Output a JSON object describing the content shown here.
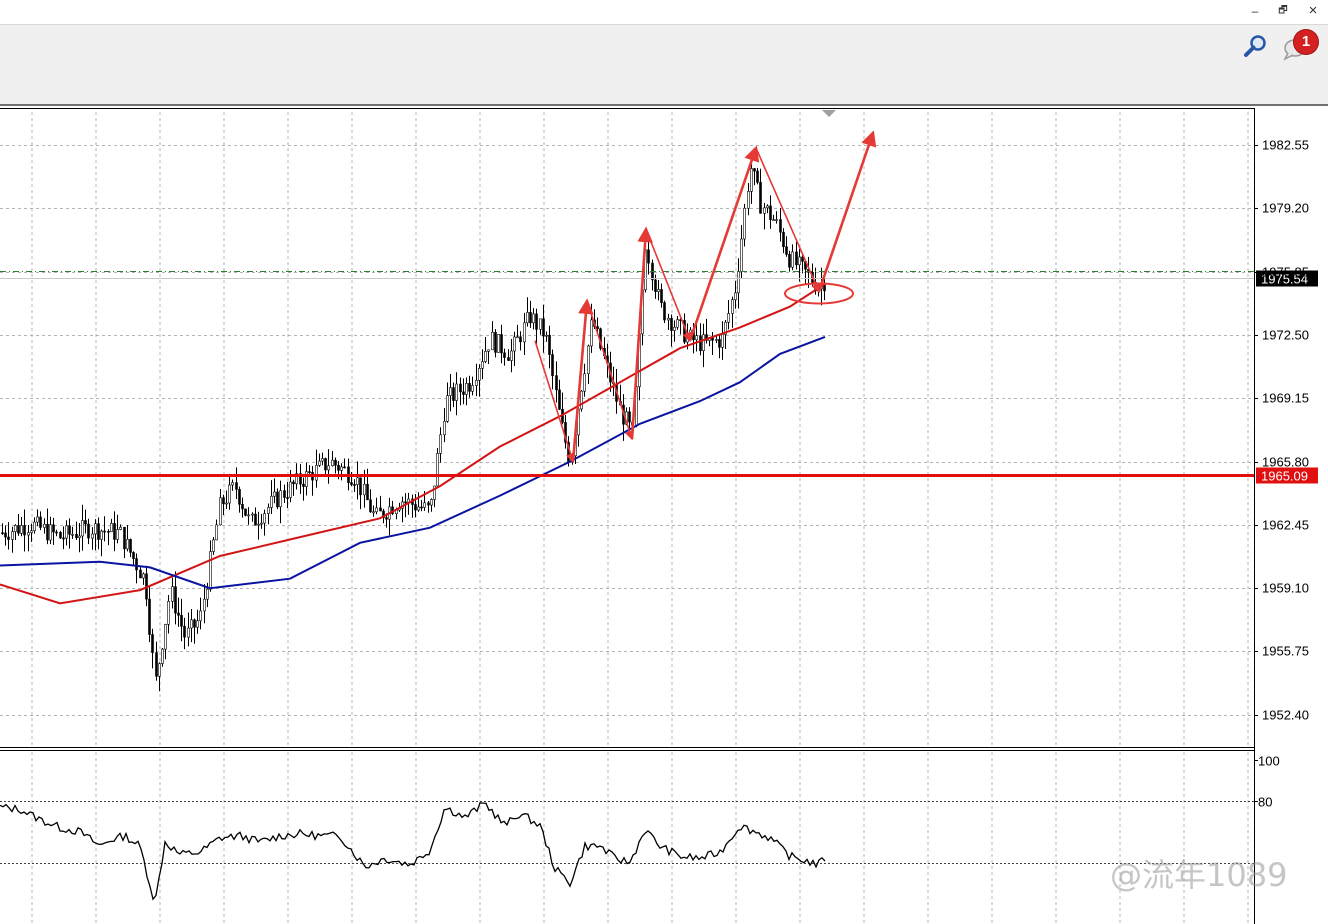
{
  "window": {
    "minimize_icon": "minimize-icon",
    "minimize_glyph": "–",
    "restore_icon": "restore-icon",
    "restore_glyph": "🗗",
    "close_icon": "close-icon",
    "close_glyph": "×"
  },
  "toolbar": {
    "search_icon": "search-icon",
    "chat_icon": "chat-icon",
    "notification_count": "1"
  },
  "watermark": {
    "text": "@流年1089"
  },
  "colors": {
    "candles": "#000000",
    "ma_fast": "#d21414",
    "ma_slow": "#0a14a0",
    "support_line": "#e01010",
    "annotation": "#e53935",
    "grid": "#b4b4b4",
    "bid_line": "#2e7d32"
  },
  "chart_data": [
    {
      "type": "candlestick",
      "title": "",
      "ylim": [
        1950.8,
        1984.3
      ],
      "y_ticks": [
        "1982.55",
        "1979.20",
        "1975.85",
        "1972.50",
        "1969.15",
        "1965.80",
        "1962.45",
        "1959.10",
        "1955.75",
        "1952.40"
      ],
      "grid": true,
      "current_price": "1975.54",
      "support_level": "1965.09",
      "moving_averages": [
        {
          "color": "red",
          "points": [
            [
              0,
              1959.3
            ],
            [
              60,
              1958.3
            ],
            [
              140,
              1959.0
            ],
            [
              220,
              1960.8
            ],
            [
              300,
              1961.8
            ],
            [
              380,
              1962.8
            ],
            [
              440,
              1964.5
            ],
            [
              500,
              1966.6
            ],
            [
              560,
              1968.2
            ],
            [
              620,
              1970.0
            ],
            [
              680,
              1971.8
            ],
            [
              740,
              1972.9
            ],
            [
              790,
              1974.0
            ],
            [
              825,
              1975.2
            ]
          ]
        },
        {
          "color": "blue",
          "points": [
            [
              0,
              1960.3
            ],
            [
              100,
              1960.5
            ],
            [
              150,
              1960.2
            ],
            [
              210,
              1959.1
            ],
            [
              290,
              1959.6
            ],
            [
              360,
              1961.5
            ],
            [
              430,
              1962.3
            ],
            [
              500,
              1964.0
            ],
            [
              570,
              1965.8
            ],
            [
              640,
              1967.8
            ],
            [
              700,
              1969.0
            ],
            [
              740,
              1970.0
            ],
            [
              780,
              1971.5
            ],
            [
              825,
              1972.4
            ]
          ]
        }
      ],
      "price_path": [
        [
          0,
          1962.0
        ],
        [
          30,
          1962.5
        ],
        [
          60,
          1961.8
        ],
        [
          90,
          1962.3
        ],
        [
          120,
          1962.0
        ],
        [
          145,
          1959.5
        ],
        [
          155,
          1954.0
        ],
        [
          170,
          1959.0
        ],
        [
          185,
          1956.5
        ],
        [
          200,
          1957.5
        ],
        [
          220,
          1963.5
        ],
        [
          235,
          1964.5
        ],
        [
          250,
          1962.5
        ],
        [
          280,
          1964.0
        ],
        [
          300,
          1964.8
        ],
        [
          330,
          1965.8
        ],
        [
          355,
          1965.0
        ],
        [
          375,
          1962.8
        ],
        [
          400,
          1963.8
        ],
        [
          430,
          1963.2
        ],
        [
          445,
          1969.0
        ],
        [
          470,
          1970.0
        ],
        [
          490,
          1972.3
        ],
        [
          510,
          1971.5
        ],
        [
          530,
          1973.5
        ],
        [
          545,
          1972.5
        ],
        [
          560,
          1968.0
        ],
        [
          570,
          1965.8
        ],
        [
          580,
          1969.5
        ],
        [
          592,
          1973.3
        ],
        [
          605,
          1971.0
        ],
        [
          620,
          1968.5
        ],
        [
          633,
          1967.2
        ],
        [
          645,
          1977.5
        ],
        [
          660,
          1974.0
        ],
        [
          675,
          1973.0
        ],
        [
          690,
          1972.3
        ],
        [
          705,
          1972.0
        ],
        [
          722,
          1972.3
        ],
        [
          735,
          1975.0
        ],
        [
          750,
          1981.5
        ],
        [
          760,
          1979.5
        ],
        [
          775,
          1978.5
        ],
        [
          790,
          1976.5
        ],
        [
          805,
          1975.8
        ],
        [
          818,
          1975.1
        ],
        [
          825,
          1975.4
        ]
      ],
      "annotation_arrows": [
        {
          "from": [
            535,
            1972.2
          ],
          "to": [
            573,
            1965.8
          ]
        },
        {
          "from": [
            573,
            1965.8
          ],
          "to": [
            587,
            1974.3
          ]
        },
        {
          "from": [
            587,
            1974.3
          ],
          "to": [
            632,
            1967.0
          ]
        },
        {
          "from": [
            632,
            1967.0
          ],
          "to": [
            646,
            1978.1
          ]
        },
        {
          "from": [
            646,
            1978.1
          ],
          "to": [
            690,
            1972.2
          ]
        },
        {
          "from": [
            690,
            1972.2
          ],
          "to": [
            756,
            1982.4
          ]
        },
        {
          "from": [
            756,
            1982.4
          ],
          "to": [
            819,
            1974.8
          ]
        },
        {
          "from": [
            819,
            1974.8
          ],
          "to": [
            873,
            1983.2
          ]
        }
      ],
      "highlight_ellipse_center": [
        819,
        1974.8
      ]
    },
    {
      "type": "line",
      "title": "",
      "ylim": [
        20,
        100
      ],
      "y_ticks": [
        "100",
        "80"
      ],
      "level_lines": [
        80,
        50
      ],
      "values": [
        [
          0,
          77
        ],
        [
          20,
          76
        ],
        [
          40,
          71
        ],
        [
          60,
          67
        ],
        [
          80,
          65
        ],
        [
          100,
          58
        ],
        [
          110,
          61
        ],
        [
          125,
          63
        ],
        [
          140,
          58
        ],
        [
          155,
          30
        ],
        [
          165,
          60
        ],
        [
          180,
          54
        ],
        [
          200,
          55
        ],
        [
          220,
          62
        ],
        [
          240,
          63
        ],
        [
          260,
          60
        ],
        [
          280,
          63
        ],
        [
          300,
          64
        ],
        [
          320,
          63
        ],
        [
          340,
          63
        ],
        [
          365,
          48
        ],
        [
          385,
          52
        ],
        [
          410,
          49
        ],
        [
          430,
          56
        ],
        [
          445,
          77
        ],
        [
          465,
          72
        ],
        [
          485,
          79
        ],
        [
          505,
          68
        ],
        [
          520,
          74
        ],
        [
          540,
          68
        ],
        [
          555,
          47
        ],
        [
          570,
          40
        ],
        [
          585,
          58
        ],
        [
          600,
          58
        ],
        [
          615,
          52
        ],
        [
          630,
          50
        ],
        [
          645,
          66
        ],
        [
          660,
          58
        ],
        [
          680,
          53
        ],
        [
          700,
          52
        ],
        [
          720,
          55
        ],
        [
          740,
          68
        ],
        [
          755,
          65
        ],
        [
          770,
          62
        ],
        [
          790,
          53
        ],
        [
          805,
          51
        ],
        [
          818,
          49
        ],
        [
          825,
          52
        ]
      ]
    }
  ]
}
